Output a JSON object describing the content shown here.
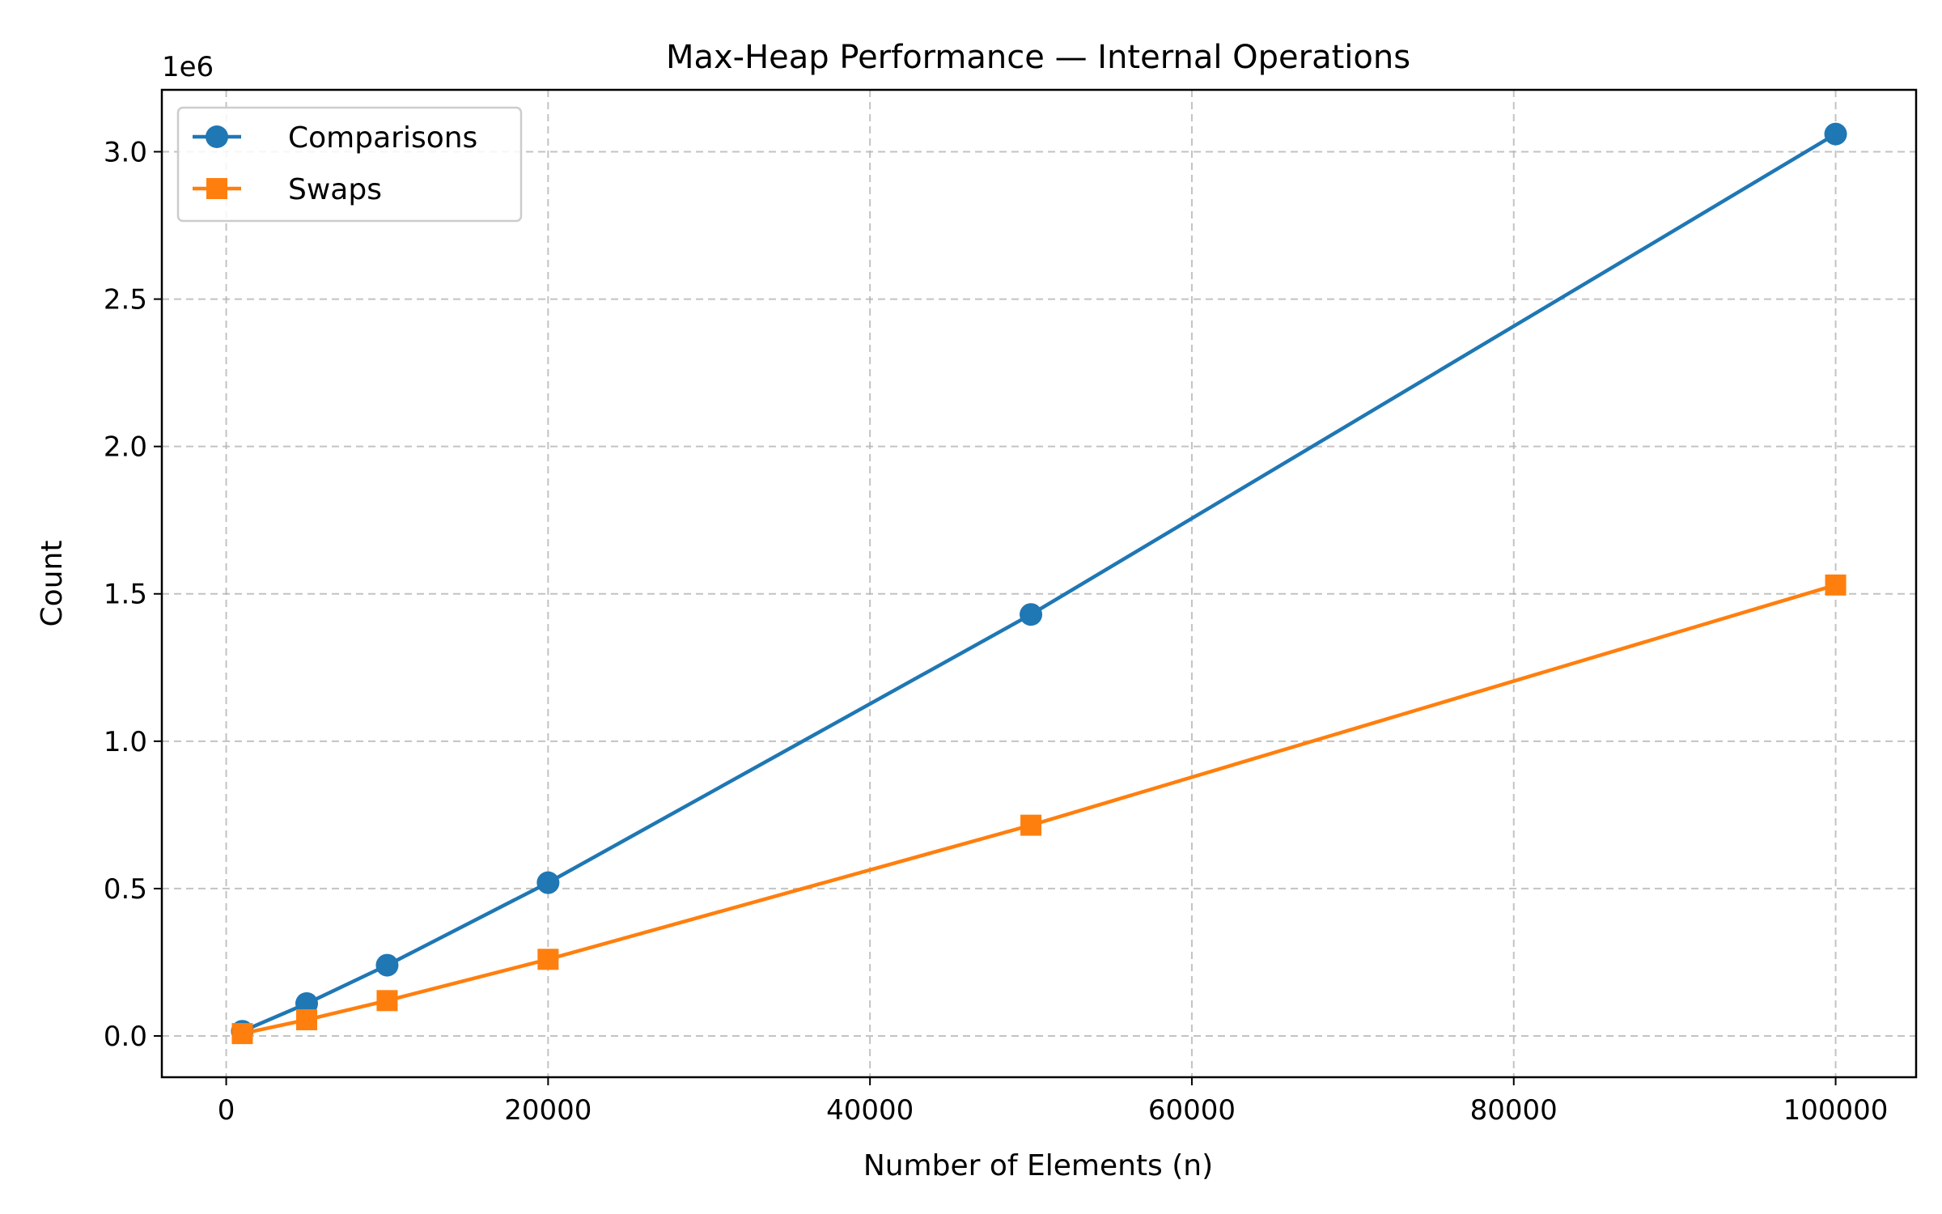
{
  "chart_data": {
    "type": "line",
    "title": "Max-Heap Performance — Internal Operations",
    "xlabel": "Number of Elements (n)",
    "ylabel": "Count",
    "y_offset_label": "1e6",
    "xlim": [
      -4000,
      105000
    ],
    "ylim": [
      -140000,
      3210000
    ],
    "x_ticks": [
      0,
      20000,
      40000,
      60000,
      80000,
      100000
    ],
    "x_tick_labels": [
      "0",
      "20000",
      "40000",
      "60000",
      "80000",
      "100000"
    ],
    "y_ticks": [
      0,
      500000,
      1000000,
      1500000,
      2000000,
      2500000,
      3000000
    ],
    "y_tick_labels": [
      "0.0",
      "0.5",
      "1.0",
      "1.5",
      "2.0",
      "2.5",
      "3.0"
    ],
    "grid": true,
    "legend_position": "top-left",
    "x": [
      1000,
      5000,
      10000,
      20000,
      50000,
      100000
    ],
    "series": [
      {
        "name": "Comparisons",
        "color": "#1f77b4",
        "marker": "circle",
        "values": [
          16000,
          110000,
          240000,
          520000,
          1430000,
          3060000
        ]
      },
      {
        "name": "Swaps",
        "color": "#ff7f0e",
        "marker": "square",
        "values": [
          8000,
          55000,
          120000,
          260000,
          715000,
          1530000
        ]
      }
    ]
  }
}
